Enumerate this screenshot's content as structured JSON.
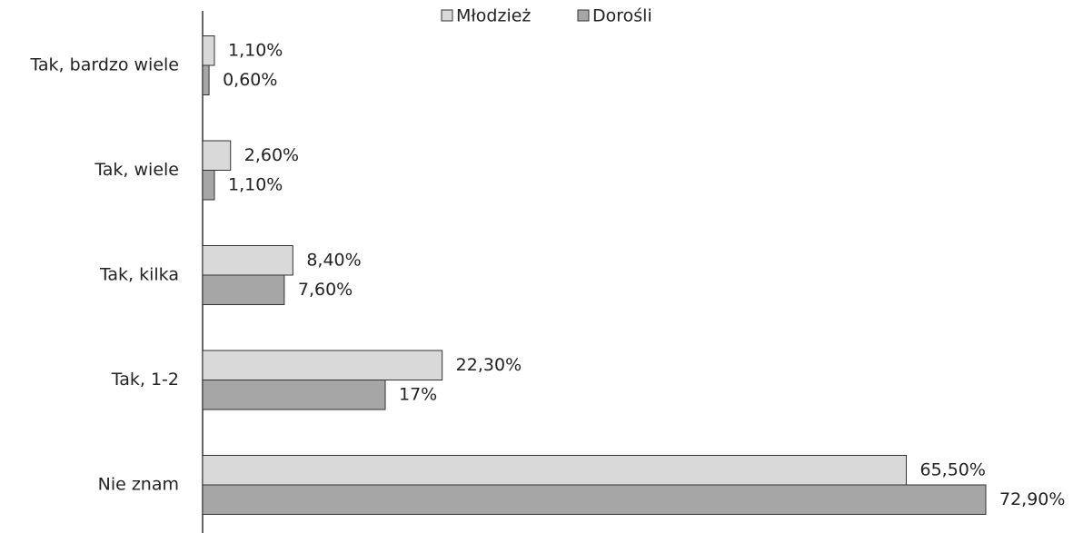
{
  "chart_data": {
    "type": "barh",
    "categories": [
      "Tak, bardzo wiele",
      "Tak, wiele",
      "Tak, kilka",
      "Tak, 1-2",
      "Nie znam"
    ],
    "series": [
      {
        "name": "Młodzież",
        "color": "#d9d9d9",
        "values": [
          1.1,
          2.6,
          8.4,
          22.3,
          65.5
        ],
        "value_labels": [
          "1,10%",
          "2,60%",
          "8,40%",
          "22,30%",
          "65,50%"
        ]
      },
      {
        "name": "Dorośli",
        "color": "#a6a6a6",
        "values": [
          0.6,
          1.1,
          7.6,
          17,
          72.9
        ],
        "value_labels": [
          "0,60%",
          "1,10%",
          "7,60%",
          "17%",
          "72,90%"
        ]
      }
    ],
    "legend": "top"
  }
}
